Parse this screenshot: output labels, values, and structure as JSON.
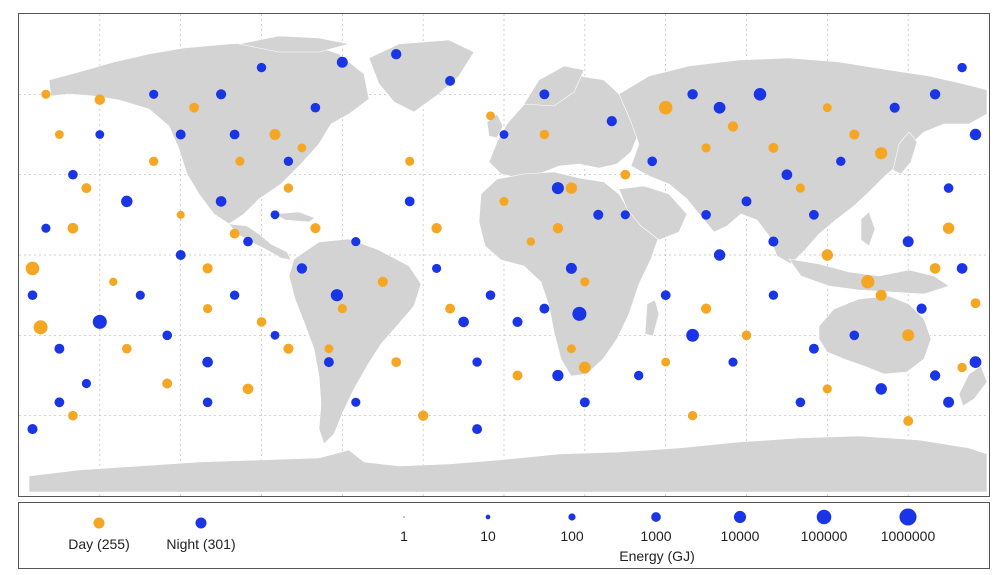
{
  "colors": {
    "day": "#f5a623",
    "night": "#1a35e6",
    "land": "#d3d3d3",
    "grid": "#bcbcbc"
  },
  "legend": {
    "day_label": "Day (255)",
    "night_label": "Night (301)",
    "energy_title": "Energy (GJ)",
    "size_labels": [
      "1",
      "10",
      "100",
      "1000",
      "10000",
      "100000",
      "1000000"
    ]
  },
  "map_data": {
    "type": "proportional-symbol-map",
    "size_variable": "Energy (GJ)",
    "size_scale": "log",
    "grid": true,
    "events": [
      {
        "lon": -155,
        "lat": 25,
        "energy": 800,
        "period": "day"
      },
      {
        "lon": -150,
        "lat": 58,
        "energy": 1200,
        "period": "day"
      },
      {
        "lon": -165,
        "lat": 45,
        "energy": 300,
        "period": "day"
      },
      {
        "lon": -172,
        "lat": -27,
        "energy": 30000,
        "period": "day"
      },
      {
        "lon": -175,
        "lat": -5,
        "energy": 20000,
        "period": "day"
      },
      {
        "lon": -160,
        "lat": 10,
        "energy": 1500,
        "period": "day"
      },
      {
        "lon": -145,
        "lat": -10,
        "energy": 200,
        "period": "day"
      },
      {
        "lon": -130,
        "lat": 35,
        "energy": 500,
        "period": "day"
      },
      {
        "lon": -120,
        "lat": 15,
        "energy": 150,
        "period": "day"
      },
      {
        "lon": -110,
        "lat": -20,
        "energy": 400,
        "period": "day"
      },
      {
        "lon": -140,
        "lat": -35,
        "energy": 600,
        "period": "day"
      },
      {
        "lon": -125,
        "lat": -48,
        "energy": 800,
        "period": "day"
      },
      {
        "lon": -98,
        "lat": 35,
        "energy": 400,
        "period": "day"
      },
      {
        "lon": -85,
        "lat": 45,
        "energy": 2000,
        "period": "day"
      },
      {
        "lon": -75,
        "lat": 40,
        "energy": 300,
        "period": "day"
      },
      {
        "lon": -80,
        "lat": 25,
        "energy": 500,
        "period": "day"
      },
      {
        "lon": -70,
        "lat": 10,
        "energy": 900,
        "period": "day"
      },
      {
        "lon": -100,
        "lat": 8,
        "energy": 700,
        "period": "day"
      },
      {
        "lon": -110,
        "lat": -5,
        "energy": 1000,
        "period": "day"
      },
      {
        "lon": -90,
        "lat": -25,
        "energy": 600,
        "period": "day"
      },
      {
        "lon": -80,
        "lat": -35,
        "energy": 900,
        "period": "day"
      },
      {
        "lon": -60,
        "lat": -20,
        "energy": 400,
        "period": "day"
      },
      {
        "lon": -65,
        "lat": -35,
        "energy": 300,
        "period": "day"
      },
      {
        "lon": -95,
        "lat": -50,
        "energy": 1500,
        "period": "day"
      },
      {
        "lon": -45,
        "lat": -10,
        "energy": 1000,
        "period": "day"
      },
      {
        "lon": -40,
        "lat": -40,
        "energy": 700,
        "period": "day"
      },
      {
        "lon": -35,
        "lat": 35,
        "energy": 400,
        "period": "day"
      },
      {
        "lon": -25,
        "lat": 10,
        "energy": 1200,
        "period": "day"
      },
      {
        "lon": -20,
        "lat": -20,
        "energy": 800,
        "period": "day"
      },
      {
        "lon": -5,
        "lat": 52,
        "energy": 300,
        "period": "day"
      },
      {
        "lon": 0,
        "lat": 20,
        "energy": 400,
        "period": "day"
      },
      {
        "lon": 10,
        "lat": 5,
        "energy": 200,
        "period": "day"
      },
      {
        "lon": 15,
        "lat": 45,
        "energy": 600,
        "period": "day"
      },
      {
        "lon": 25,
        "lat": 25,
        "energy": 3000,
        "period": "day"
      },
      {
        "lon": 20,
        "lat": 10,
        "energy": 1200,
        "period": "day"
      },
      {
        "lon": 30,
        "lat": -10,
        "energy": 400,
        "period": "day"
      },
      {
        "lon": 25,
        "lat": -35,
        "energy": 300,
        "period": "day"
      },
      {
        "lon": 5,
        "lat": -45,
        "energy": 800,
        "period": "day"
      },
      {
        "lon": 30,
        "lat": -42,
        "energy": 4000,
        "period": "day"
      },
      {
        "lon": 45,
        "lat": 30,
        "energy": 700,
        "period": "day"
      },
      {
        "lon": 60,
        "lat": 55,
        "energy": 20000,
        "period": "day"
      },
      {
        "lon": 75,
        "lat": 40,
        "energy": 400,
        "period": "day"
      },
      {
        "lon": 85,
        "lat": 48,
        "energy": 1200,
        "period": "day"
      },
      {
        "lon": 100,
        "lat": 40,
        "energy": 800,
        "period": "day"
      },
      {
        "lon": 110,
        "lat": 25,
        "energy": 400,
        "period": "day"
      },
      {
        "lon": 120,
        "lat": 55,
        "energy": 300,
        "period": "day"
      },
      {
        "lon": 140,
        "lat": 38,
        "energy": 6000,
        "period": "day"
      },
      {
        "lon": 120,
        "lat": 0,
        "energy": 3000,
        "period": "day"
      },
      {
        "lon": 135,
        "lat": -10,
        "energy": 15000,
        "period": "day"
      },
      {
        "lon": 140,
        "lat": -15,
        "energy": 2000,
        "period": "day"
      },
      {
        "lon": 150,
        "lat": -30,
        "energy": 5000,
        "period": "day"
      },
      {
        "lon": 160,
        "lat": -5,
        "energy": 1500,
        "period": "day"
      },
      {
        "lon": 165,
        "lat": 10,
        "energy": 3000,
        "period": "day"
      },
      {
        "lon": 175,
        "lat": -18,
        "energy": 800,
        "period": "day"
      },
      {
        "lon": 170,
        "lat": -42,
        "energy": 500,
        "period": "day"
      },
      {
        "lon": 120,
        "lat": -50,
        "energy": 400,
        "period": "day"
      },
      {
        "lon": 90,
        "lat": -30,
        "energy": 600,
        "period": "day"
      },
      {
        "lon": 75,
        "lat": -20,
        "energy": 1000,
        "period": "day"
      },
      {
        "lon": 60,
        "lat": -40,
        "energy": 300,
        "period": "day"
      },
      {
        "lon": -30,
        "lat": -60,
        "energy": 1200,
        "period": "day"
      },
      {
        "lon": 70,
        "lat": -60,
        "energy": 500,
        "period": "day"
      },
      {
        "lon": 150,
        "lat": -62,
        "energy": 800,
        "period": "day"
      },
      {
        "lon": -160,
        "lat": -60,
        "energy": 600,
        "period": "day"
      },
      {
        "lon": -170,
        "lat": 60,
        "energy": 400,
        "period": "day"
      },
      {
        "lon": 130,
        "lat": 45,
        "energy": 900,
        "period": "day"
      },
      {
        "lon": -115,
        "lat": 55,
        "energy": 700,
        "period": "day"
      },
      {
        "lon": -170,
        "lat": 10,
        "energy": 400,
        "period": "night"
      },
      {
        "lon": -160,
        "lat": 30,
        "energy": 600,
        "period": "night"
      },
      {
        "lon": -140,
        "lat": 20,
        "energy": 3000,
        "period": "night"
      },
      {
        "lon": -150,
        "lat": 45,
        "energy": 300,
        "period": "night"
      },
      {
        "lon": -130,
        "lat": 60,
        "energy": 400,
        "period": "night"
      },
      {
        "lon": -120,
        "lat": 45,
        "energy": 800,
        "period": "night"
      },
      {
        "lon": -105,
        "lat": 60,
        "energy": 1000,
        "period": "night"
      },
      {
        "lon": -90,
        "lat": 70,
        "energy": 500,
        "period": "night"
      },
      {
        "lon": -60,
        "lat": 72,
        "energy": 2000,
        "period": "night"
      },
      {
        "lon": -40,
        "lat": 75,
        "energy": 1200,
        "period": "night"
      },
      {
        "lon": -20,
        "lat": 65,
        "energy": 800,
        "period": "night"
      },
      {
        "lon": -105,
        "lat": 20,
        "energy": 1500,
        "period": "night"
      },
      {
        "lon": -95,
        "lat": 5,
        "energy": 600,
        "period": "night"
      },
      {
        "lon": -85,
        "lat": 15,
        "energy": 300,
        "period": "night"
      },
      {
        "lon": -120,
        "lat": 0,
        "energy": 800,
        "period": "night"
      },
      {
        "lon": -135,
        "lat": -15,
        "energy": 400,
        "period": "night"
      },
      {
        "lon": -150,
        "lat": -25,
        "energy": 30000,
        "period": "night"
      },
      {
        "lon": -165,
        "lat": -35,
        "energy": 800,
        "period": "night"
      },
      {
        "lon": -175,
        "lat": -15,
        "energy": 600,
        "period": "night"
      },
      {
        "lon": -155,
        "lat": -48,
        "energy": 400,
        "period": "night"
      },
      {
        "lon": -125,
        "lat": -30,
        "energy": 600,
        "period": "night"
      },
      {
        "lon": -110,
        "lat": -40,
        "energy": 1500,
        "period": "night"
      },
      {
        "lon": -100,
        "lat": -15,
        "energy": 500,
        "period": "night"
      },
      {
        "lon": -85,
        "lat": -30,
        "energy": 300,
        "period": "night"
      },
      {
        "lon": -75,
        "lat": -5,
        "energy": 1200,
        "period": "night"
      },
      {
        "lon": -62,
        "lat": -15,
        "energy": 6000,
        "period": "night"
      },
      {
        "lon": -65,
        "lat": -40,
        "energy": 800,
        "period": "night"
      },
      {
        "lon": -55,
        "lat": 5,
        "energy": 400,
        "period": "night"
      },
      {
        "lon": -35,
        "lat": 20,
        "energy": 700,
        "period": "night"
      },
      {
        "lon": -25,
        "lat": -5,
        "energy": 400,
        "period": "night"
      },
      {
        "lon": -15,
        "lat": -25,
        "energy": 1500,
        "period": "night"
      },
      {
        "lon": -5,
        "lat": -15,
        "energy": 600,
        "period": "night"
      },
      {
        "lon": 5,
        "lat": -25,
        "energy": 900,
        "period": "night"
      },
      {
        "lon": -10,
        "lat": -40,
        "energy": 500,
        "period": "night"
      },
      {
        "lon": 15,
        "lat": -20,
        "energy": 800,
        "period": "night"
      },
      {
        "lon": 25,
        "lat": -5,
        "energy": 2000,
        "period": "night"
      },
      {
        "lon": 28,
        "lat": -22,
        "energy": 30000,
        "period": "night"
      },
      {
        "lon": 20,
        "lat": -45,
        "energy": 2500,
        "period": "night"
      },
      {
        "lon": 35,
        "lat": 15,
        "energy": 900,
        "period": "night"
      },
      {
        "lon": 20,
        "lat": 25,
        "energy": 5000,
        "period": "night"
      },
      {
        "lon": 45,
        "lat": 15,
        "energy": 400,
        "period": "night"
      },
      {
        "lon": 40,
        "lat": 50,
        "energy": 1000,
        "period": "night"
      },
      {
        "lon": 15,
        "lat": 60,
        "energy": 800,
        "period": "night"
      },
      {
        "lon": 0,
        "lat": 45,
        "energy": 300,
        "period": "night"
      },
      {
        "lon": 55,
        "lat": 35,
        "energy": 600,
        "period": "night"
      },
      {
        "lon": 70,
        "lat": 60,
        "energy": 1200,
        "period": "night"
      },
      {
        "lon": 80,
        "lat": 55,
        "energy": 4000,
        "period": "night"
      },
      {
        "lon": 95,
        "lat": 60,
        "energy": 8000,
        "period": "night"
      },
      {
        "lon": 105,
        "lat": 30,
        "energy": 1500,
        "period": "night"
      },
      {
        "lon": 90,
        "lat": 20,
        "energy": 800,
        "period": "night"
      },
      {
        "lon": 75,
        "lat": 15,
        "energy": 600,
        "period": "night"
      },
      {
        "lon": 80,
        "lat": 0,
        "energy": 3000,
        "period": "night"
      },
      {
        "lon": 100,
        "lat": 5,
        "energy": 900,
        "period": "night"
      },
      {
        "lon": 115,
        "lat": 15,
        "energy": 700,
        "period": "night"
      },
      {
        "lon": 125,
        "lat": 35,
        "energy": 500,
        "period": "night"
      },
      {
        "lon": 145,
        "lat": 55,
        "energy": 900,
        "period": "night"
      },
      {
        "lon": 160,
        "lat": 60,
        "energy": 1200,
        "period": "night"
      },
      {
        "lon": 175,
        "lat": 45,
        "energy": 3000,
        "period": "night"
      },
      {
        "lon": 165,
        "lat": 25,
        "energy": 600,
        "period": "night"
      },
      {
        "lon": 150,
        "lat": 5,
        "energy": 2000,
        "period": "night"
      },
      {
        "lon": 170,
        "lat": -5,
        "energy": 1500,
        "period": "night"
      },
      {
        "lon": 155,
        "lat": -20,
        "energy": 1000,
        "period": "night"
      },
      {
        "lon": 130,
        "lat": -30,
        "energy": 600,
        "period": "night"
      },
      {
        "lon": 115,
        "lat": -35,
        "energy": 800,
        "period": "night"
      },
      {
        "lon": 100,
        "lat": -15,
        "energy": 500,
        "period": "night"
      },
      {
        "lon": 85,
        "lat": -40,
        "energy": 400,
        "period": "night"
      },
      {
        "lon": 70,
        "lat": -30,
        "energy": 10000,
        "period": "night"
      },
      {
        "lon": 60,
        "lat": -15,
        "energy": 700,
        "period": "night"
      },
      {
        "lon": 50,
        "lat": -45,
        "energy": 500,
        "period": "night"
      },
      {
        "lon": 140,
        "lat": -50,
        "energy": 3000,
        "period": "night"
      },
      {
        "lon": 160,
        "lat": -45,
        "energy": 1200,
        "period": "night"
      },
      {
        "lon": 175,
        "lat": -40,
        "energy": 4000,
        "period": "night"
      },
      {
        "lon": 165,
        "lat": -55,
        "energy": 2000,
        "period": "night"
      },
      {
        "lon": 110,
        "lat": -55,
        "energy": 600,
        "period": "night"
      },
      {
        "lon": 30,
        "lat": -55,
        "energy": 800,
        "period": "night"
      },
      {
        "lon": -55,
        "lat": -55,
        "energy": 400,
        "period": "night"
      },
      {
        "lon": -110,
        "lat": -55,
        "energy": 600,
        "period": "night"
      },
      {
        "lon": -165,
        "lat": -55,
        "energy": 700,
        "period": "night"
      },
      {
        "lon": -175,
        "lat": -65,
        "energy": 900,
        "period": "night"
      },
      {
        "lon": -10,
        "lat": -65,
        "energy": 800,
        "period": "night"
      },
      {
        "lon": 170,
        "lat": 70,
        "energy": 500,
        "period": "night"
      },
      {
        "lon": -100,
        "lat": 45,
        "energy": 700,
        "period": "night"
      },
      {
        "lon": -80,
        "lat": 35,
        "energy": 500,
        "period": "night"
      },
      {
        "lon": -70,
        "lat": 55,
        "energy": 600,
        "period": "night"
      }
    ]
  }
}
